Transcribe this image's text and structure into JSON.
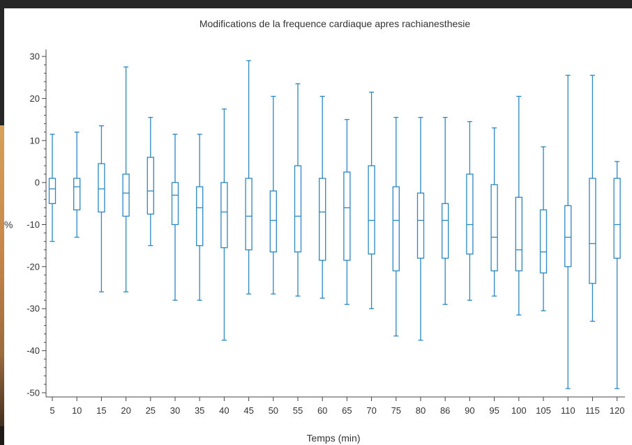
{
  "chart_data": {
    "type": "boxplot",
    "title": "Modifications de la frequence cardiaque apres rachianesthesie",
    "xlabel": "Temps (min)",
    "ylabel": "%",
    "ylim": [
      -51,
      31
    ],
    "yticks": [
      30,
      20,
      10,
      0,
      -10,
      -20,
      -30,
      -40,
      -50
    ],
    "ytick_labels": [
      "30",
      "20",
      "10",
      "0",
      "-10",
      "-20",
      "-30",
      "-40",
      "-50"
    ],
    "categories": [
      "5",
      "10",
      "15",
      "20",
      "25",
      "30",
      "35",
      "40",
      "45",
      "50",
      "55",
      "60",
      "65",
      "70",
      "75",
      "80",
      "86",
      "90",
      "95",
      "100",
      "105",
      "110",
      "115",
      "120"
    ],
    "series": [
      {
        "color": "#2a87c0",
        "boxes": [
          {
            "min": -14,
            "q1": -5,
            "median": -1.5,
            "q3": 1,
            "max": 11.5
          },
          {
            "min": -13,
            "q1": -6.5,
            "median": -1,
            "q3": 1,
            "max": 12
          },
          {
            "min": -26,
            "q1": -7,
            "median": -1.5,
            "q3": 4.5,
            "max": 13.5
          },
          {
            "min": -26,
            "q1": -8,
            "median": -2.5,
            "q3": 2,
            "max": 27.5
          },
          {
            "min": -15,
            "q1": -7.5,
            "median": -2,
            "q3": 6,
            "max": 15.5
          },
          {
            "min": -28,
            "q1": -10,
            "median": -3,
            "q3": 0,
            "max": 11.5
          },
          {
            "min": -28,
            "q1": -15,
            "median": -6,
            "q3": -1,
            "max": 11.5
          },
          {
            "min": -37.5,
            "q1": -15.5,
            "median": -7,
            "q3": 0,
            "max": 17.5
          },
          {
            "min": -26.5,
            "q1": -16,
            "median": -8,
            "q3": 1,
            "max": 29
          },
          {
            "min": -26.5,
            "q1": -16.5,
            "median": -9,
            "q3": -2,
            "max": 20.5
          },
          {
            "min": -27,
            "q1": -16.5,
            "median": -8,
            "q3": 4,
            "max": 23.5
          },
          {
            "min": -27.5,
            "q1": -18.5,
            "median": -7,
            "q3": 1,
            "max": 20.5
          },
          {
            "min": -29,
            "q1": -18.5,
            "median": -6,
            "q3": 2.5,
            "max": 15
          },
          {
            "min": -30,
            "q1": -17,
            "median": -9,
            "q3": 4,
            "max": 21.5
          },
          {
            "min": -36.5,
            "q1": -21,
            "median": -9,
            "q3": -1,
            "max": 15.5
          },
          {
            "min": -37.5,
            "q1": -18,
            "median": -9,
            "q3": -2.5,
            "max": 15.5
          },
          {
            "min": -29,
            "q1": -18,
            "median": -9,
            "q3": -5,
            "max": 15.5
          },
          {
            "min": -28,
            "q1": -17,
            "median": -10,
            "q3": 2,
            "max": 14.5
          },
          {
            "min": -27,
            "q1": -21,
            "median": -13,
            "q3": -0.5,
            "max": 13
          },
          {
            "min": -31.5,
            "q1": -21,
            "median": -16,
            "q3": -3.5,
            "max": 20.5
          },
          {
            "min": -30.5,
            "q1": -21.5,
            "median": -16.5,
            "q3": -6.5,
            "max": 8.5
          },
          {
            "min": -49,
            "q1": -20,
            "median": -13,
            "q3": -5.5,
            "max": 25.5
          },
          {
            "min": -33,
            "q1": -24,
            "median": -14.5,
            "q3": 1,
            "max": 25.5
          },
          {
            "min": -49,
            "q1": -18,
            "median": -10,
            "q3": 1,
            "max": 5
          }
        ]
      }
    ]
  }
}
